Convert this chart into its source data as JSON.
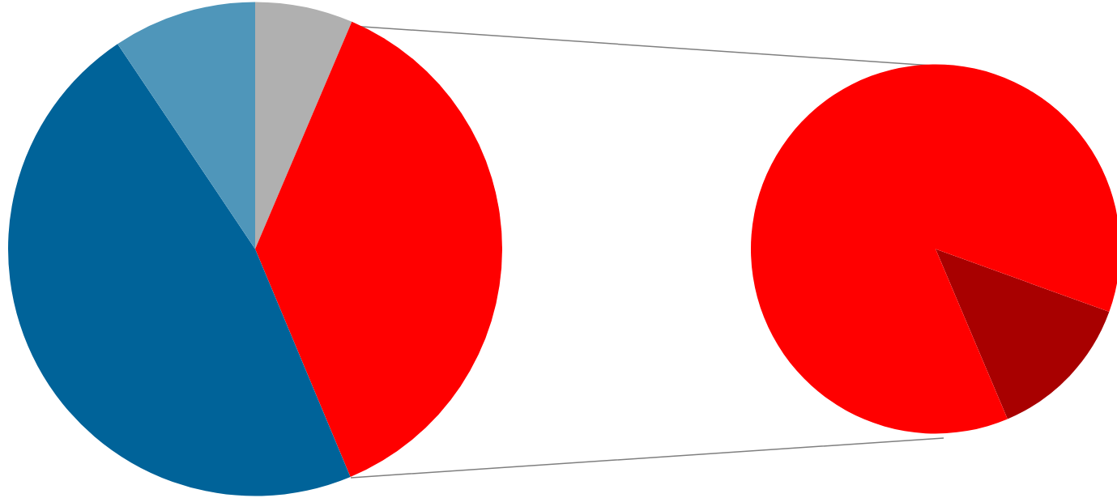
{
  "chart_data": [
    {
      "type": "pie",
      "categories": [
        null,
        null,
        null,
        null
      ],
      "values": [
        6.4,
        37.3,
        46.9,
        9.4
      ],
      "colors": [
        "#b0b0b0",
        "#ff0000",
        "#006399",
        "#4f96ba"
      ]
    },
    {
      "type": "pie",
      "categories": [
        null,
        null
      ],
      "values": [
        13.1,
        86.9
      ],
      "colors": [
        "#a80000",
        "#ff0000"
      ]
    }
  ]
}
